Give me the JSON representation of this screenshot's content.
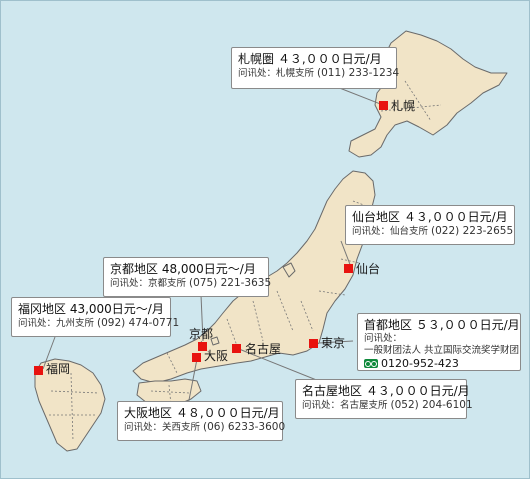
{
  "cities": {
    "sapporo": "札幌",
    "sendai": "仙台",
    "tokyo": "東京",
    "nagoya": "名古屋",
    "kyoto": "京都",
    "osaka": "大阪",
    "fukuoka": "福岡"
  },
  "callouts": {
    "sapporo": {
      "rate": "札幌圏 ４３,０００日元/月",
      "contact": "问讯处：札幌支所 ",
      "phone": "(011) 233-1234"
    },
    "sendai": {
      "rate": "仙台地区 ４３,０００日元/月",
      "contact": "问讯处：仙台支所 ",
      "phone": "(022) 223-2655"
    },
    "tokyo": {
      "rate": "首都地区 ５３,０００日元/月",
      "contact": "问讯处：",
      "org": "一般财团法人 共立国际交流奖学财团",
      "freedial": "0120-952-423"
    },
    "nagoya": {
      "rate": "名古屋地区 ４３,０００日元/月",
      "contact": "问讯处：名古屋支所 ",
      "phone": "(052) 204-6101"
    },
    "kyoto": {
      "rate": "京都地区 48,000日元～/月",
      "contact": "问讯处：京都支所 ",
      "phone": "(075) 221-3635"
    },
    "osaka": {
      "rate": "大阪地区 ４８,０００日元/月",
      "contact": "问讯处：关西支所 ",
      "phone": "(06) 6233-3600"
    },
    "fukuoka": {
      "rate": "福冈地区 43,000日元～/月",
      "contact": "问讯处：九州支所 ",
      "phone": "(092) 474-0771"
    }
  },
  "colors": {
    "sea": "#cfe7ee",
    "land": "#f1e4c7",
    "marker": "#e8130f",
    "freedial": "#0f8a3c"
  }
}
